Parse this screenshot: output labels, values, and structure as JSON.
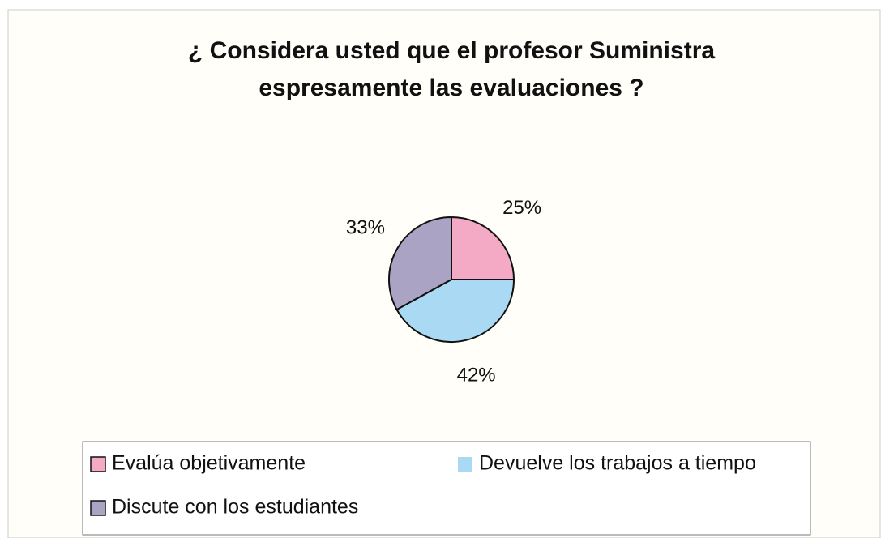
{
  "chart_data": {
    "type": "pie",
    "title": [
      "¿ Considera usted que el profesor Suministra",
      "espresamente las evaluaciones ?"
    ],
    "categories": [
      "Evalúa objetivamente",
      "Devuelve los trabajos a tiempo",
      "Discute con los estudiantes"
    ],
    "values": [
      25,
      42,
      33
    ],
    "value_labels": [
      "25%",
      "42%",
      "33%"
    ],
    "colors": [
      "#f4a9c4",
      "#a9d9f3",
      "#aaa3c4"
    ],
    "legend": "bottom"
  }
}
